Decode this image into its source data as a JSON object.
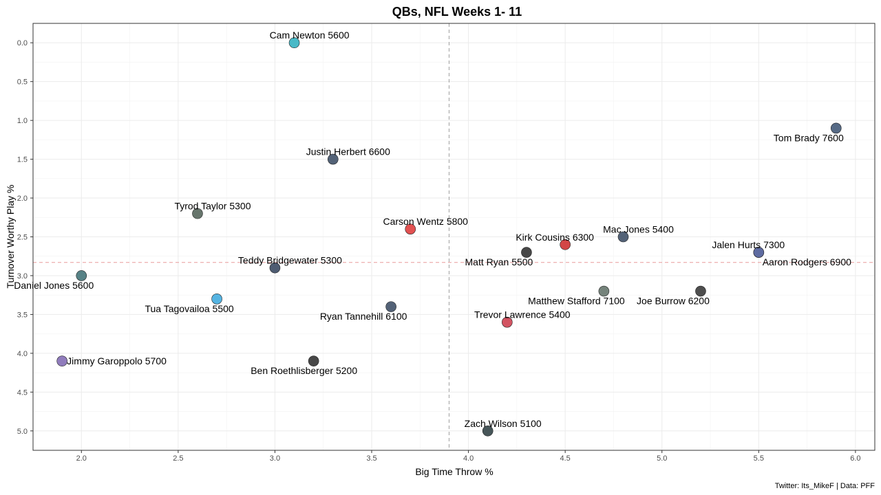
{
  "chart_data": {
    "type": "scatter",
    "title": "QBs, NFL Weeks 1- 11",
    "xlabel": "Big Time Throw %",
    "ylabel": "Turnover Worthy Play %",
    "caption": "Twitter: Its_MikeF | Data: PFF",
    "xlim": [
      1.75,
      6.1
    ],
    "ylim": [
      5.25,
      -0.25
    ],
    "y_reversed": true,
    "x_ticks": [
      "2.0",
      "2.5",
      "3.0",
      "3.5",
      "4.0",
      "4.5",
      "5.0",
      "5.5",
      "6.0"
    ],
    "y_ticks": [
      "0.0",
      "0.5",
      "1.0",
      "1.5",
      "2.0",
      "2.5",
      "3.0",
      "3.5",
      "4.0",
      "4.5",
      "5.0"
    ],
    "grid": true,
    "reference_lines": {
      "x": 3.9,
      "y": 2.83
    },
    "points": [
      {
        "label": "Cam Newton 5600",
        "x": 3.1,
        "y": 0.0,
        "color": "#3fb5c4",
        "label_pos": "above"
      },
      {
        "label": "Tom Brady 7600",
        "x": 5.9,
        "y": 1.1,
        "color": "#4d6280",
        "label_pos": "below-left"
      },
      {
        "label": "Justin Herbert 6600",
        "x": 3.3,
        "y": 1.5,
        "color": "#4a5a70",
        "label_pos": "above"
      },
      {
        "label": "Tyrod Taylor 5300",
        "x": 2.6,
        "y": 2.2,
        "color": "#5f6e64",
        "label_pos": "above"
      },
      {
        "label": "Carson Wentz 5800",
        "x": 3.7,
        "y": 2.4,
        "color": "#e04848",
        "label_pos": "above"
      },
      {
        "label": "Mac Jones 5400",
        "x": 4.8,
        "y": 2.5,
        "color": "#4a5a70",
        "label_pos": "above"
      },
      {
        "label": "Kirk Cousins 6300",
        "x": 4.5,
        "y": 2.6,
        "color": "#d13c3c",
        "label_pos": "above-left"
      },
      {
        "label": "Jalen Hurts 7300",
        "x": 5.5,
        "y": 2.7,
        "color": "#5e6aa0",
        "label_pos": "above-left"
      },
      {
        "label": "Matt Ryan 5500",
        "x": 4.3,
        "y": 2.7,
        "color": "#3d3d3d",
        "label_pos": "below-left"
      },
      {
        "label": "Aaron Rodgers 6900",
        "x": 5.5,
        "y": 2.7,
        "color": "#5e6aa0",
        "label_pos": "below-right"
      },
      {
        "label": "Teddy Bridgewater 5300",
        "x": 3.0,
        "y": 2.9,
        "color": "#45536a",
        "label_pos": "above"
      },
      {
        "label": "Daniel Jones 5600",
        "x": 2.0,
        "y": 3.0,
        "color": "#4e7b80",
        "label_pos": "below-left"
      },
      {
        "label": "Matthew Stafford 7100",
        "x": 4.7,
        "y": 3.2,
        "color": "#6e7c74",
        "label_pos": "below-left"
      },
      {
        "label": "Joe Burrow 6200",
        "x": 5.2,
        "y": 3.2,
        "color": "#454545",
        "label_pos": "below-left"
      },
      {
        "label": "Tua Tagovailoa 5500",
        "x": 2.7,
        "y": 3.3,
        "color": "#4cb0e0",
        "label_pos": "below-left"
      },
      {
        "label": "Ryan Tannehill 6100",
        "x": 3.6,
        "y": 3.4,
        "color": "#4a5a70",
        "label_pos": "below-left"
      },
      {
        "label": "Trevor Lawrence 5400",
        "x": 4.2,
        "y": 3.6,
        "color": "#d14b5a",
        "label_pos": "above"
      },
      {
        "label": "Jimmy Garoppolo 5700",
        "x": 1.9,
        "y": 4.1,
        "color": "#8a75b8",
        "label_pos": "right"
      },
      {
        "label": "Ben Roethlisberger 5200",
        "x": 3.2,
        "y": 4.1,
        "color": "#3d3d3d",
        "label_pos": "below"
      },
      {
        "label": "Zach Wilson 5100",
        "x": 4.1,
        "y": 5.0,
        "color": "#3d4d50",
        "label_pos": "above"
      }
    ]
  }
}
